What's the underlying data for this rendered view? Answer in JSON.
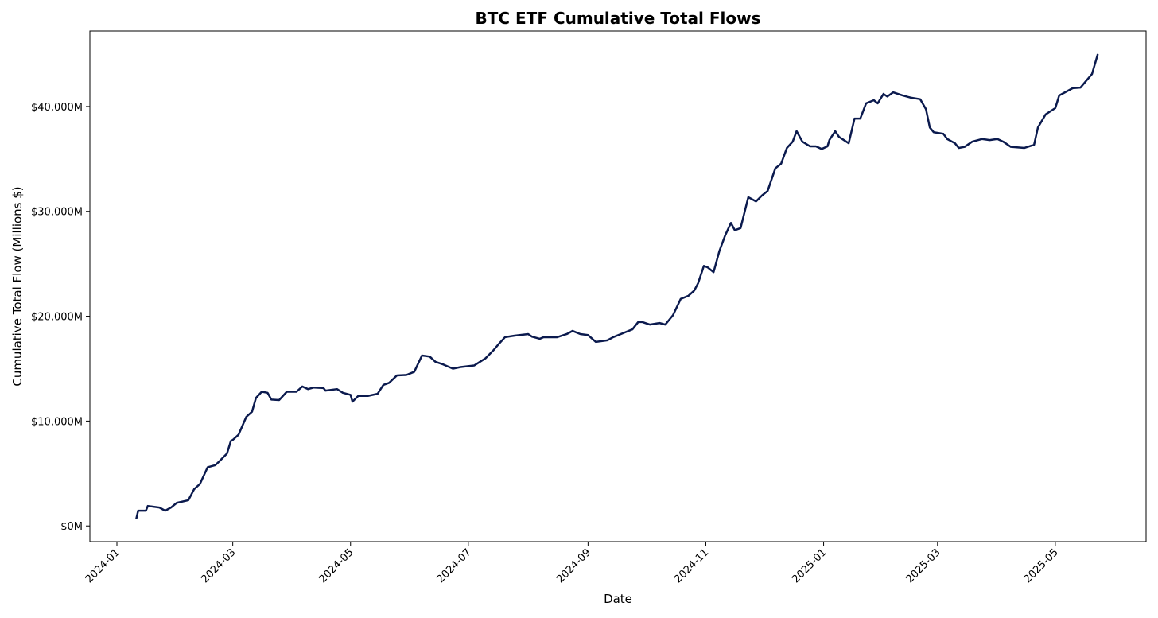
{
  "chart_data": {
    "type": "line",
    "title": "BTC ETF Cumulative Total Flows",
    "x_label": "Date",
    "y_label": "Cumulative Total Flow (Millions $)",
    "color": "#0b1a4e",
    "x": [
      "2024-01-11",
      "2024-01-12",
      "2024-01-16",
      "2024-01-17",
      "2024-01-23",
      "2024-01-26",
      "2024-01-29",
      "2024-02-01",
      "2024-02-07",
      "2024-02-10",
      "2024-02-13",
      "2024-02-17",
      "2024-02-21",
      "2024-02-23",
      "2024-02-27",
      "2024-02-29",
      "2024-03-01",
      "2024-03-04",
      "2024-03-08",
      "2024-03-11",
      "2024-03-13",
      "2024-03-16",
      "2024-03-19",
      "2024-03-21",
      "2024-03-25",
      "2024-03-29",
      "2024-04-03",
      "2024-04-06",
      "2024-04-09",
      "2024-04-12",
      "2024-04-17",
      "2024-04-18",
      "2024-04-24",
      "2024-04-27",
      "2024-05-01",
      "2024-05-02",
      "2024-05-05",
      "2024-05-10",
      "2024-05-15",
      "2024-05-18",
      "2024-05-21",
      "2024-05-25",
      "2024-05-30",
      "2024-06-03",
      "2024-06-07",
      "2024-06-11",
      "2024-06-14",
      "2024-06-18",
      "2024-06-23",
      "2024-06-27",
      "2024-07-04",
      "2024-07-10",
      "2024-07-14",
      "2024-07-17",
      "2024-07-20",
      "2024-07-25",
      "2024-08-01",
      "2024-08-03",
      "2024-08-07",
      "2024-08-09",
      "2024-08-16",
      "2024-08-21",
      "2024-08-24",
      "2024-08-28",
      "2024-09-01",
      "2024-09-05",
      "2024-09-11",
      "2024-09-14",
      "2024-09-20",
      "2024-09-24",
      "2024-09-27",
      "2024-09-29",
      "2024-10-03",
      "2024-10-08",
      "2024-10-11",
      "2024-10-15",
      "2024-10-19",
      "2024-10-23",
      "2024-10-26",
      "2024-10-28",
      "2024-10-31",
      "2024-11-02",
      "2024-11-05",
      "2024-11-08",
      "2024-11-11",
      "2024-11-14",
      "2024-11-16",
      "2024-11-19",
      "2024-11-23",
      "2024-11-27",
      "2024-11-30",
      "2024-12-03",
      "2024-12-07",
      "2024-12-10",
      "2024-12-13",
      "2024-12-16",
      "2024-12-18",
      "2024-12-21",
      "2024-12-25",
      "2024-12-28",
      "2024-12-31",
      "2025-01-03",
      "2025-01-04",
      "2025-01-07",
      "2025-01-09",
      "2025-01-14",
      "2025-01-17",
      "2025-01-20",
      "2025-01-23",
      "2025-01-27",
      "2025-01-29",
      "2025-02-01",
      "2025-02-03",
      "2025-02-06",
      "2025-02-11",
      "2025-02-15",
      "2025-02-20",
      "2025-02-23",
      "2025-02-25",
      "2025-02-27",
      "2025-03-04",
      "2025-03-06",
      "2025-03-10",
      "2025-03-12",
      "2025-03-15",
      "2025-03-19",
      "2025-03-24",
      "2025-03-28",
      "2025-04-01",
      "2025-04-04",
      "2025-04-08",
      "2025-04-15",
      "2025-04-20",
      "2025-04-22",
      "2025-04-26",
      "2025-05-01",
      "2025-05-03",
      "2025-05-06",
      "2025-05-10",
      "2025-05-14",
      "2025-05-17",
      "2025-05-20",
      "2025-05-23"
    ],
    "values": [
      650,
      1450,
      1450,
      1900,
      1750,
      1450,
      1750,
      2200,
      2450,
      3500,
      4000,
      5600,
      5800,
      6150,
      6900,
      8100,
      8200,
      8700,
      10400,
      10900,
      12200,
      12800,
      12700,
      12050,
      12000,
      12800,
      12800,
      13300,
      13050,
      13200,
      13150,
      12900,
      13050,
      12700,
      12500,
      11850,
      12400,
      12400,
      12600,
      13450,
      13650,
      14350,
      14400,
      14700,
      16250,
      16150,
      15650,
      15400,
      15000,
      15150,
      15300,
      16000,
      16750,
      17400,
      18000,
      18150,
      18300,
      18050,
      17850,
      18000,
      18000,
      18300,
      18600,
      18300,
      18200,
      17550,
      17700,
      18000,
      18450,
      18750,
      19450,
      19450,
      19200,
      19350,
      19200,
      20100,
      21650,
      21950,
      22450,
      23150,
      24800,
      24650,
      24200,
      26200,
      27700,
      28900,
      28200,
      28400,
      31350,
      30950,
      31500,
      31950,
      34100,
      34550,
      36050,
      36650,
      37650,
      36650,
      36200,
      36200,
      35950,
      36200,
      36800,
      37650,
      37100,
      36500,
      38850,
      38850,
      40300,
      40600,
      40300,
      41200,
      40950,
      41350,
      41050,
      40850,
      40700,
      39750,
      38000,
      37550,
      37400,
      36900,
      36500,
      36050,
      36150,
      36650,
      36900,
      36800,
      36900,
      36650,
      36150,
      36050,
      36350,
      38000,
      39250,
      39850,
      41050,
      41350,
      41750,
      41800,
      42450,
      43100,
      45000
    ],
    "xlim": [
      "2023-12-18",
      "2025-06-17"
    ],
    "xticks": [
      "2024-01",
      "2024-03",
      "2024-05",
      "2024-07",
      "2024-09",
      "2024-11",
      "2025-01",
      "2025-03",
      "2025-05"
    ],
    "ylim": [
      -1500,
      47200
    ],
    "yticks": [
      {
        "value": 0,
        "label": "$0M"
      },
      {
        "value": 10000,
        "label": "$10,000M"
      },
      {
        "value": 20000,
        "label": "$20,000M"
      },
      {
        "value": 30000,
        "label": "$30,000M"
      },
      {
        "value": 40000,
        "label": "$40,000M"
      }
    ],
    "grid": false
  }
}
